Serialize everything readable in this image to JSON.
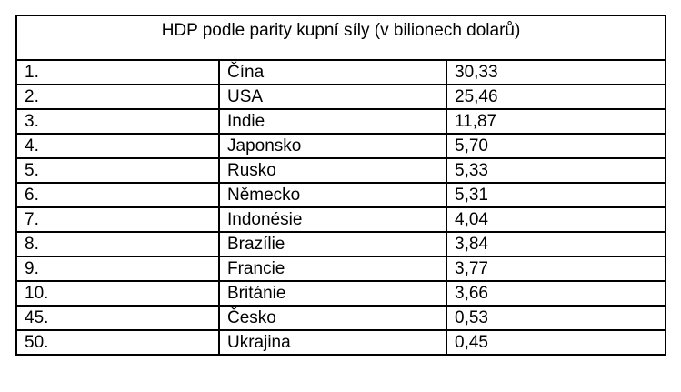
{
  "table": {
    "title": "HDP podle parity kupní síly (v bilionech dolarů)",
    "columns": [
      "rank",
      "country",
      "value"
    ],
    "rows": [
      {
        "rank": "1.",
        "country": "Čína",
        "value": "30,33"
      },
      {
        "rank": "2.",
        "country": "USA",
        "value": "25,46"
      },
      {
        "rank": "3.",
        "country": "Indie",
        "value": "11,87"
      },
      {
        "rank": "4.",
        "country": "Japonsko",
        "value": "5,70"
      },
      {
        "rank": "5.",
        "country": "Rusko",
        "value": "5,33"
      },
      {
        "rank": "6.",
        "country": "Německo",
        "value": "5,31"
      },
      {
        "rank": "7.",
        "country": "Indonésie",
        "value": "4,04"
      },
      {
        "rank": "8.",
        "country": "Brazílie",
        "value": "3,84"
      },
      {
        "rank": "9.",
        "country": "Francie",
        "value": "3,77"
      },
      {
        "rank": "10.",
        "country": "Británie",
        "value": "3,66"
      },
      {
        "rank": "45.",
        "country": "Česko",
        "value": "0,53"
      },
      {
        "rank": "50.",
        "country": "Ukrajina",
        "value": "0,45"
      }
    ],
    "colors": {
      "border": "#000000",
      "background": "#ffffff",
      "text": "#000000"
    }
  }
}
